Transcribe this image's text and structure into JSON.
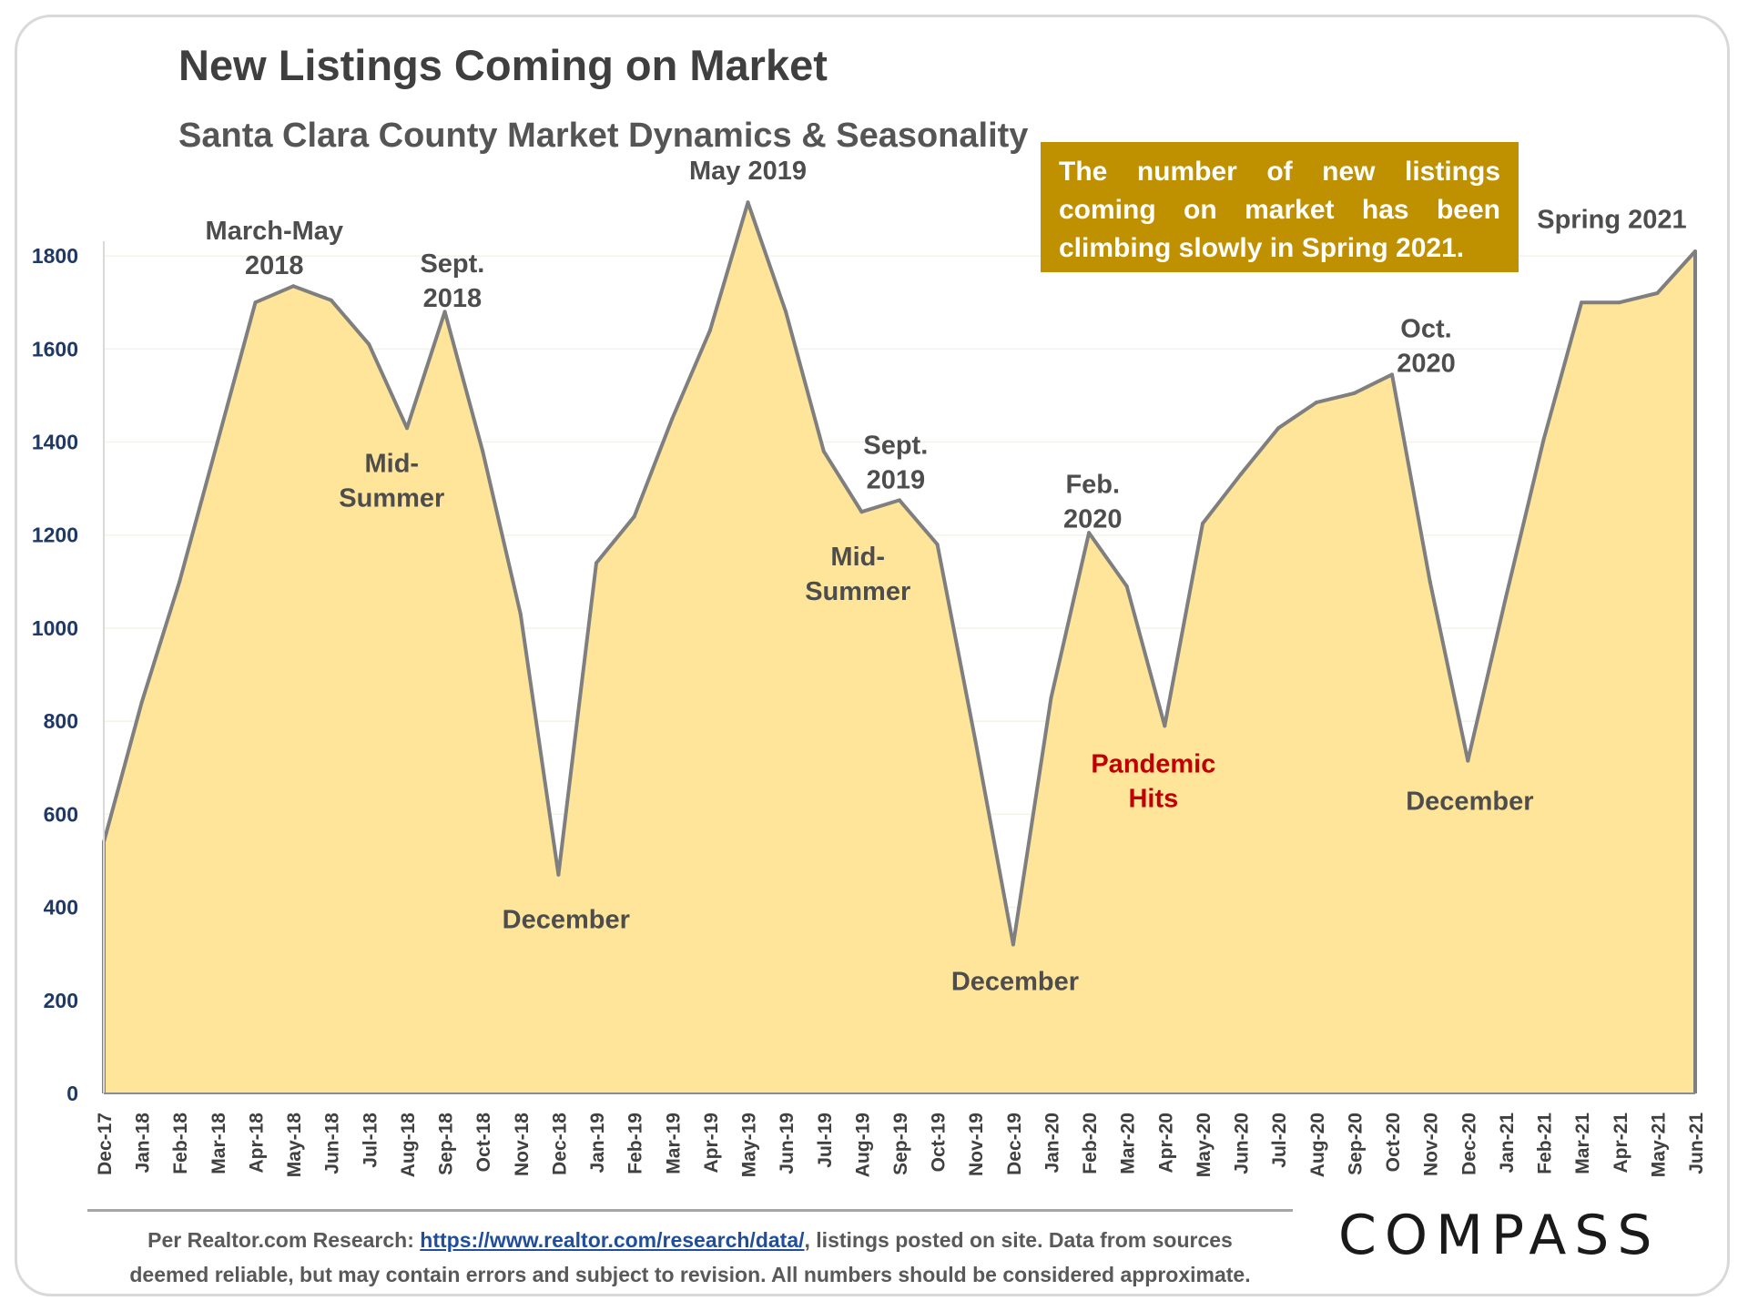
{
  "chart_data": {
    "type": "area",
    "title": "New Listings Coming on Market",
    "subtitle": "Santa Clara County Market Dynamics & Seasonality",
    "ylim": [
      0,
      1900
    ],
    "y_ticks": [
      "0",
      "200",
      "400",
      "600",
      "800",
      "1000",
      "1200",
      "1400",
      "1600",
      "1800"
    ],
    "grid": true,
    "x": [
      "Dec-17",
      "Jan-18",
      "Feb-18",
      "Mar-18",
      "Apr-18",
      "May-18",
      "Jun-18",
      "Jul-18",
      "Aug-18",
      "Sep-18",
      "Oct-18",
      "Nov-18",
      "Dec-18",
      "Jan-19",
      "Feb-19",
      "Mar-19",
      "Apr-19",
      "May-19",
      "Jun-19",
      "Jul-19",
      "Aug-19",
      "Sep-19",
      "Oct-19",
      "Nov-19",
      "Dec-19",
      "Jan-20",
      "Feb-20",
      "Mar-20",
      "Apr-20",
      "May-20",
      "Jun-20",
      "Jul-20",
      "Aug-20",
      "Sep-20",
      "Oct-20",
      "Nov-20",
      "Dec-20",
      "Jan-21",
      "Feb-21",
      "Mar-21",
      "Apr-21",
      "May-21",
      "Jun-21"
    ],
    "values": [
      540,
      840,
      1100,
      1400,
      1700,
      1735,
      1705,
      1610,
      1430,
      1680,
      1380,
      1030,
      470,
      1140,
      1240,
      1450,
      1640,
      1915,
      1680,
      1380,
      1250,
      1275,
      1180,
      760,
      320,
      850,
      1205,
      1090,
      790,
      1225,
      1330,
      1430,
      1485,
      1505,
      1545,
      1100,
      715,
      1065,
      1405,
      1700,
      1700,
      1720,
      1810
    ],
    "colors": {
      "fill": "#ffe599",
      "line": "#7f7f7f",
      "axis_text": "#1f3864"
    },
    "annotations": [
      {
        "lines": [
          "March-May",
          "2018"
        ],
        "x": 4.5,
        "y": 1835
      },
      {
        "lines": [
          "Sept.",
          "2018"
        ],
        "x": 9.2,
        "y": 1765
      },
      {
        "lines": [
          "Mid-",
          "Summer"
        ],
        "x": 7.6,
        "y": 1335
      },
      {
        "lines": [
          "December"
        ],
        "x": 12.2,
        "y": 355
      },
      {
        "lines": [
          "May 2019"
        ],
        "x": 17.0,
        "y": 1965
      },
      {
        "lines": [
          "Sept.",
          "2019"
        ],
        "x": 20.9,
        "y": 1375
      },
      {
        "lines": [
          "Mid-",
          "Summer"
        ],
        "x": 19.9,
        "y": 1135
      },
      {
        "lines": [
          "December"
        ],
        "x": 24.05,
        "y": 222
      },
      {
        "lines": [
          "Feb.",
          "2020"
        ],
        "x": 26.1,
        "y": 1290
      },
      {
        "lines": [
          "Pandemic",
          "Hits"
        ],
        "x": 27.7,
        "y": 690,
        "color": "red"
      },
      {
        "lines": [
          "December"
        ],
        "x": 36.05,
        "y": 610
      },
      {
        "lines": [
          "Oct.",
          "2020"
        ],
        "x": 34.9,
        "y": 1625
      },
      {
        "lines": [
          "Spring 2021"
        ],
        "x": 39.8,
        "y": 1860
      }
    ]
  },
  "callout": {
    "text": "The number of new listings coming on market has been climbing slowly in Spring 2021."
  },
  "footer": {
    "prefix": "Per Realtor.com Research:",
    "link": "https://www.realtor.com/research/data/",
    "suffix_line1": ", listings posted on site. Data from sources",
    "line2": "deemed reliable, but may contain errors and subject to revision. All numbers should be considered approximate."
  },
  "logo": "COMPASS"
}
